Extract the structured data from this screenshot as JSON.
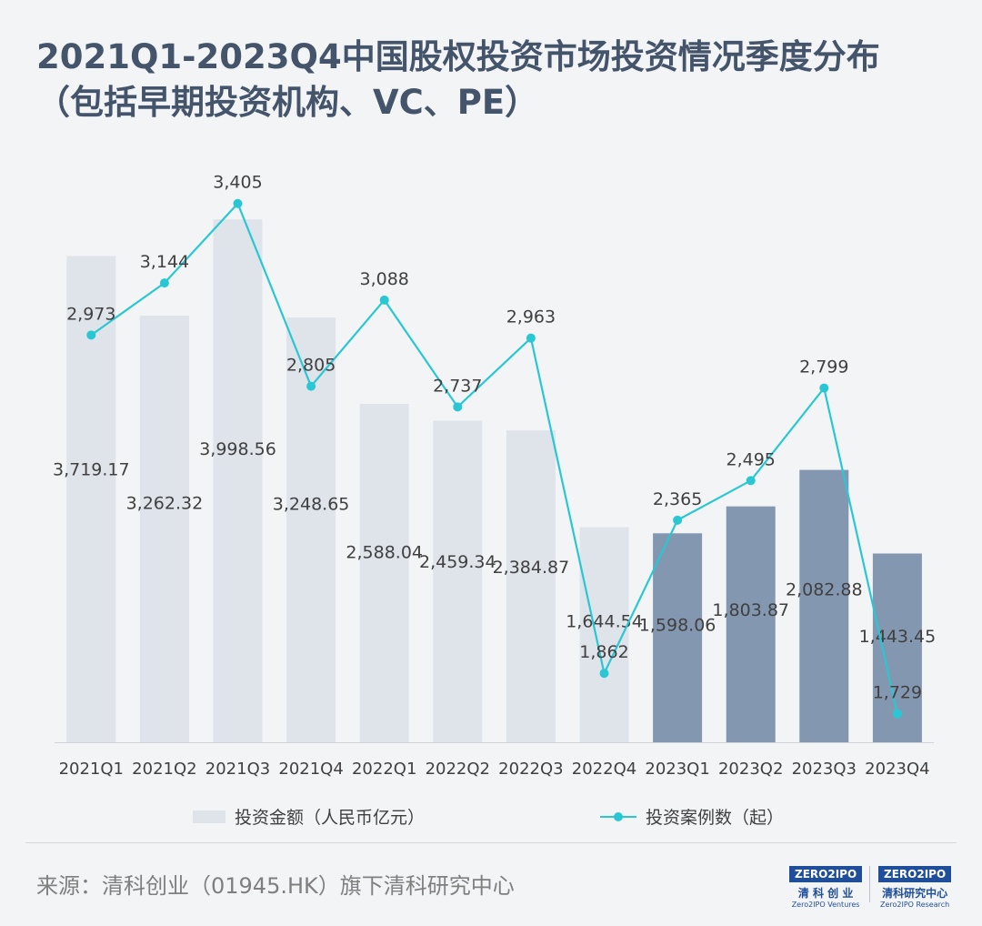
{
  "title": {
    "line1": "2021Q1-2023Q4中国股权投资市场投资情况季度分布",
    "line2": "（包括早期投资机构、VC、PE）"
  },
  "legend": {
    "bar": "投资金额（人民币亿元）",
    "line": "投资案例数（起）"
  },
  "source": "来源：清科创业（01945.HK）旗下清科研究中心",
  "logos": [
    {
      "box": "ZERO2IPO",
      "cn": "清 科 创 业",
      "en": "Zero2IPO Ventures"
    },
    {
      "box": "ZERO2IPO",
      "cn": "清科研究中心",
      "en": "Zero2IPO Research"
    }
  ],
  "colors": {
    "bar_light": "#dfe3ea",
    "bar_dark": "#8497b0",
    "line": "#29c7d3",
    "title": "#44546a"
  },
  "chart_data": {
    "type": "bar",
    "categories": [
      "2021Q1",
      "2021Q2",
      "2021Q3",
      "2021Q4",
      "2022Q1",
      "2022Q2",
      "2022Q3",
      "2022Q4",
      "2023Q1",
      "2023Q2",
      "2023Q3",
      "2023Q4"
    ],
    "series": [
      {
        "name": "投资金额（人民币亿元）",
        "type": "bar",
        "values": [
          3719.17,
          3262.32,
          3998.56,
          3248.65,
          2588.04,
          2459.34,
          2384.87,
          1644.54,
          1598.06,
          1803.87,
          2082.88,
          1443.45
        ],
        "labels": [
          "3,719.17",
          "3,262.32",
          "3,998.56",
          "3,248.65",
          "2,588.04",
          "2,459.34",
          "2,384.87",
          "1,644.54",
          "1,598.06",
          "1,803.87",
          "2,082.88",
          "1,443.45"
        ],
        "highlight_from_index": 8
      },
      {
        "name": "投资案例数（起）",
        "type": "line",
        "values": [
          2973,
          3144,
          3405,
          2805,
          3088,
          2737,
          2963,
          1862,
          2365,
          2495,
          2799,
          1729
        ],
        "labels": [
          "2,973",
          "3,144",
          "3,405",
          "2,805",
          "3,088",
          "2,737",
          "2,963",
          "1,862",
          "2,365",
          "2,495",
          "2,799",
          "1,729"
        ]
      }
    ],
    "grid": false
  }
}
